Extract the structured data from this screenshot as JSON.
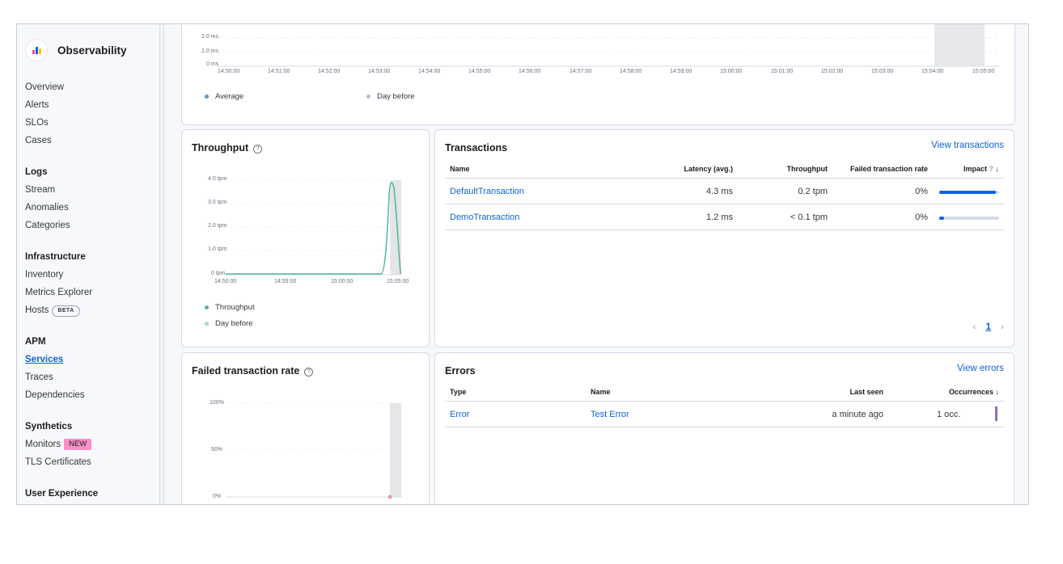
{
  "sidebar": {
    "title": "Observability",
    "sections": [
      {
        "group": "",
        "items": [
          "Overview",
          "Alerts",
          "SLOs",
          "Cases"
        ]
      },
      {
        "group": "Logs",
        "items": [
          "Stream",
          "Anomalies",
          "Categories"
        ]
      },
      {
        "group": "Infrastructure",
        "items": [
          "Inventory",
          "Metrics Explorer",
          "Hosts"
        ]
      },
      {
        "group": "APM",
        "items": [
          "Services",
          "Traces",
          "Dependencies"
        ]
      },
      {
        "group": "Synthetics",
        "items": [
          "Monitors",
          "TLS Certificates"
        ]
      },
      {
        "group": "User Experience",
        "items": []
      }
    ],
    "hosts_badge": "BETA",
    "monitors_badge": "NEW",
    "active_item": "Services"
  },
  "latency_chart": {
    "y_ticks": [
      "2.0 ms",
      "1.0 ms",
      "0 ms"
    ],
    "x_ticks": [
      "14:50:00",
      "14:51:00",
      "14:52:00",
      "14:53:00",
      "14:54:00",
      "14:55:00",
      "14:56:00",
      "14:57:00",
      "14:58:00",
      "14:59:00",
      "15:00:00",
      "15:01:00",
      "15:02:00",
      "15:03:00",
      "15:04:00",
      "15:05:00"
    ],
    "legend": [
      "Average",
      "Day before"
    ]
  },
  "throughput": {
    "title": "Throughput",
    "y_ticks": [
      "4.0 tpm",
      "3.0 tpm",
      "2.0 tpm",
      "1.0 tpm",
      "0 tpm"
    ],
    "x_ticks": [
      "14:50:00",
      "14:55:00",
      "15:00:00",
      "15:05:00"
    ],
    "legend": [
      "Throughput",
      "Day before"
    ],
    "series_color": "#54b399",
    "day_before_color": "#a0d9c6"
  },
  "failed_rate": {
    "title": "Failed transaction rate",
    "y_ticks": [
      "100%",
      "50%",
      "0%"
    ]
  },
  "transactions": {
    "title": "Transactions",
    "view_link": "View transactions",
    "columns": [
      "Name",
      "Latency (avg.)",
      "Throughput",
      "Failed transaction rate",
      "Impact"
    ],
    "rows": [
      {
        "name": "DefaultTransaction",
        "latency": "4.3 ms",
        "throughput": "0.2 tpm",
        "failed": "0%",
        "impact": 0.95
      },
      {
        "name": "DemoTransaction",
        "latency": "1.2 ms",
        "throughput": "< 0.1 tpm",
        "failed": "0%",
        "impact": 0.08
      }
    ],
    "pagination": {
      "current": "1"
    }
  },
  "errors": {
    "title": "Errors",
    "view_link": "View errors",
    "columns": [
      "Type",
      "Name",
      "Last seen",
      "Occurrences"
    ],
    "rows": [
      {
        "type": "Error",
        "name": "Test Error",
        "last_seen": "a minute ago",
        "occurrences": "1 occ."
      }
    ]
  },
  "colors": {
    "accent": "#0b64dd",
    "average": "#6092c0",
    "day_before": "#a6c0e0",
    "occurrence": "#9170b8"
  }
}
